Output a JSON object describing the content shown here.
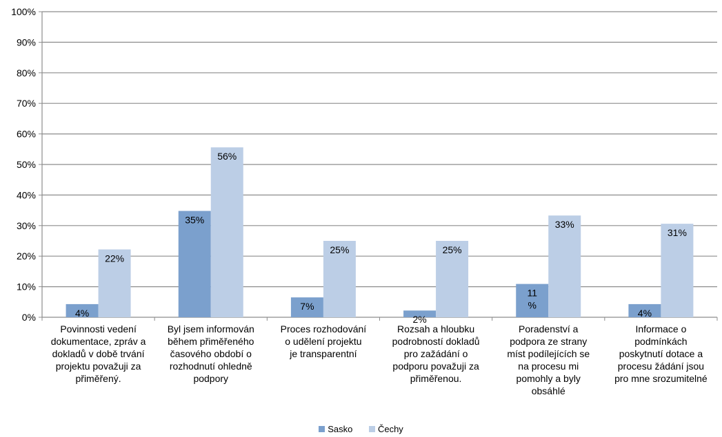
{
  "chart_data": {
    "type": "bar",
    "categories": [
      "Povinnosti vedení dokumentace, zpráv a dokladů v době trvání projektu považuji za přiměřený.",
      "Byl jsem informován během přiměřeného časového období o rozhodnutí ohledně podpory",
      "Proces rozhodování o udělení projektu je transparentní",
      "Rozsah a hloubku podrobností dokladů pro zažádání o podporu považuji za přiměřenou.",
      "Poradenství a podpora ze strany míst podílejících se na procesu mi pomohly a byly obsáhlé",
      "Informace o podmínkách poskytnutí dotace a procesu žádání jsou pro mne srozumitelné"
    ],
    "category_lines": [
      [
        "Povinnosti vedení",
        "dokumentace, zpráv a",
        "dokladů v době trvání",
        "projektu považuji za",
        "přiměřený."
      ],
      [
        "Byl jsem informován",
        "během přiměřeného",
        "časového období o",
        "rozhodnutí ohledně",
        "podpory"
      ],
      [
        "Proces rozhodování",
        "o udělení projektu",
        "je transparentní"
      ],
      [
        "Rozsah a hloubku",
        "podrobností dokladů",
        "pro zažádání o",
        "podporu považuji za",
        "přiměřenou."
      ],
      [
        "Poradenství a",
        "podpora ze strany",
        "míst podílejících se",
        "na procesu mi",
        "pomohly a byly",
        "obsáhlé"
      ],
      [
        "Informace o",
        "podmínkách",
        "poskytnutí dotace a",
        "procesu žádání jsou",
        "pro mne srozumitelné"
      ]
    ],
    "series": [
      {
        "name": "Sasko",
        "values": [
          4.3,
          34.8,
          6.5,
          2.2,
          10.9,
          4.3
        ],
        "labels": [
          "4%",
          "35%",
          "7%",
          "2%",
          "11 %",
          "4%"
        ],
        "color": "#7ba0cd"
      },
      {
        "name": "Čechy",
        "values": [
          22.2,
          55.6,
          25.0,
          25.0,
          33.3,
          30.6
        ],
        "labels": [
          "22%",
          "56%",
          "25%",
          "25%",
          "33%",
          "31%"
        ],
        "color": "#bccee6"
      }
    ],
    "ylim": [
      0,
      100
    ],
    "yticks": [
      "0%",
      "10%",
      "20%",
      "30%",
      "40%",
      "50%",
      "60%",
      "70%",
      "80%",
      "90%",
      "100%"
    ],
    "grid": true,
    "legend_position": "bottom",
    "title": "",
    "xlabel": "",
    "ylabel": ""
  }
}
